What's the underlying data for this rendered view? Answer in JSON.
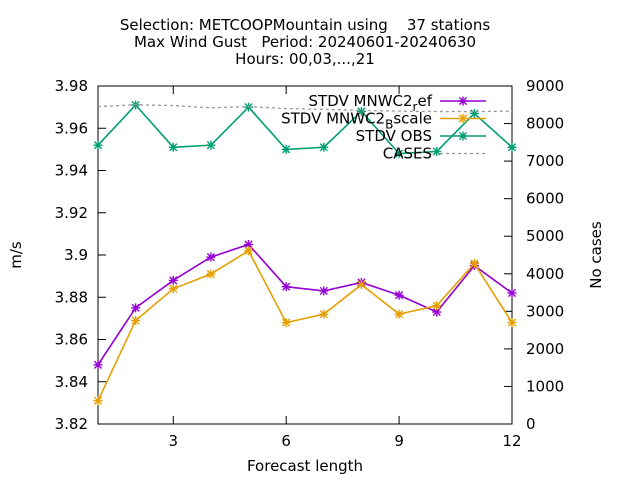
{
  "chart_data": {
    "type": "line",
    "title_lines": [
      "Selection: METCOOPMountain using    37 stations",
      "Max Wind Gust   Period: 20240601-20240630",
      "Hours: 00,03,...,21"
    ],
    "xlabel": "Forecast length",
    "ylabel": "m/s",
    "y2label": "No cases",
    "xlim": [
      1,
      12
    ],
    "ylim": [
      3.82,
      3.98
    ],
    "y2lim": [
      0,
      9000
    ],
    "x_ticks": [
      "3",
      "6",
      "9",
      "12"
    ],
    "y_ticks": [
      "3.82",
      "3.84",
      "3.86",
      "3.88",
      "3.9",
      "3.92",
      "3.94",
      "3.96",
      "3.98"
    ],
    "y2_ticks": [
      "0",
      "1000",
      "2000",
      "3000",
      "4000",
      "5000",
      "6000",
      "7000",
      "8000",
      "9000"
    ],
    "legend_position": "top-right",
    "x": [
      1,
      2,
      3,
      4,
      5,
      6,
      7,
      8,
      9,
      10,
      11,
      12
    ],
    "series": [
      {
        "name": "STDV MNWC2_ref",
        "label_main": "STDV MNWC2",
        "label_sub": "r",
        "label_tail": "ef",
        "color": "#9400d3",
        "axis": "y",
        "values": [
          3.848,
          3.875,
          3.888,
          3.899,
          3.905,
          3.885,
          3.883,
          3.887,
          3.881,
          3.873,
          3.895,
          3.882
        ]
      },
      {
        "name": "STDV MNWC2_Bscale",
        "label_main": "STDV MNWC2",
        "label_sub": "B",
        "label_tail": "scale",
        "color": "#e69f00",
        "axis": "y",
        "values": [
          3.831,
          3.869,
          3.884,
          3.891,
          3.902,
          3.868,
          3.872,
          3.886,
          3.872,
          3.876,
          3.896,
          3.868
        ]
      },
      {
        "name": "STDV OBS",
        "label_main": "STDV OBS",
        "label_sub": "",
        "label_tail": "",
        "color": "#009e73",
        "axis": "y",
        "values": [
          3.952,
          3.971,
          3.951,
          3.952,
          3.97,
          3.95,
          3.951,
          3.968,
          3.948,
          3.949,
          3.967,
          3.951
        ]
      },
      {
        "name": "CASES",
        "label_main": "CASES",
        "label_sub": "",
        "label_tail": "",
        "color": "#999999",
        "axis": "y2",
        "dashed": true,
        "values": [
          8450,
          8500,
          8480,
          8420,
          8450,
          8400,
          8380,
          8350,
          8330,
          8320,
          8320,
          8330
        ]
      }
    ]
  }
}
